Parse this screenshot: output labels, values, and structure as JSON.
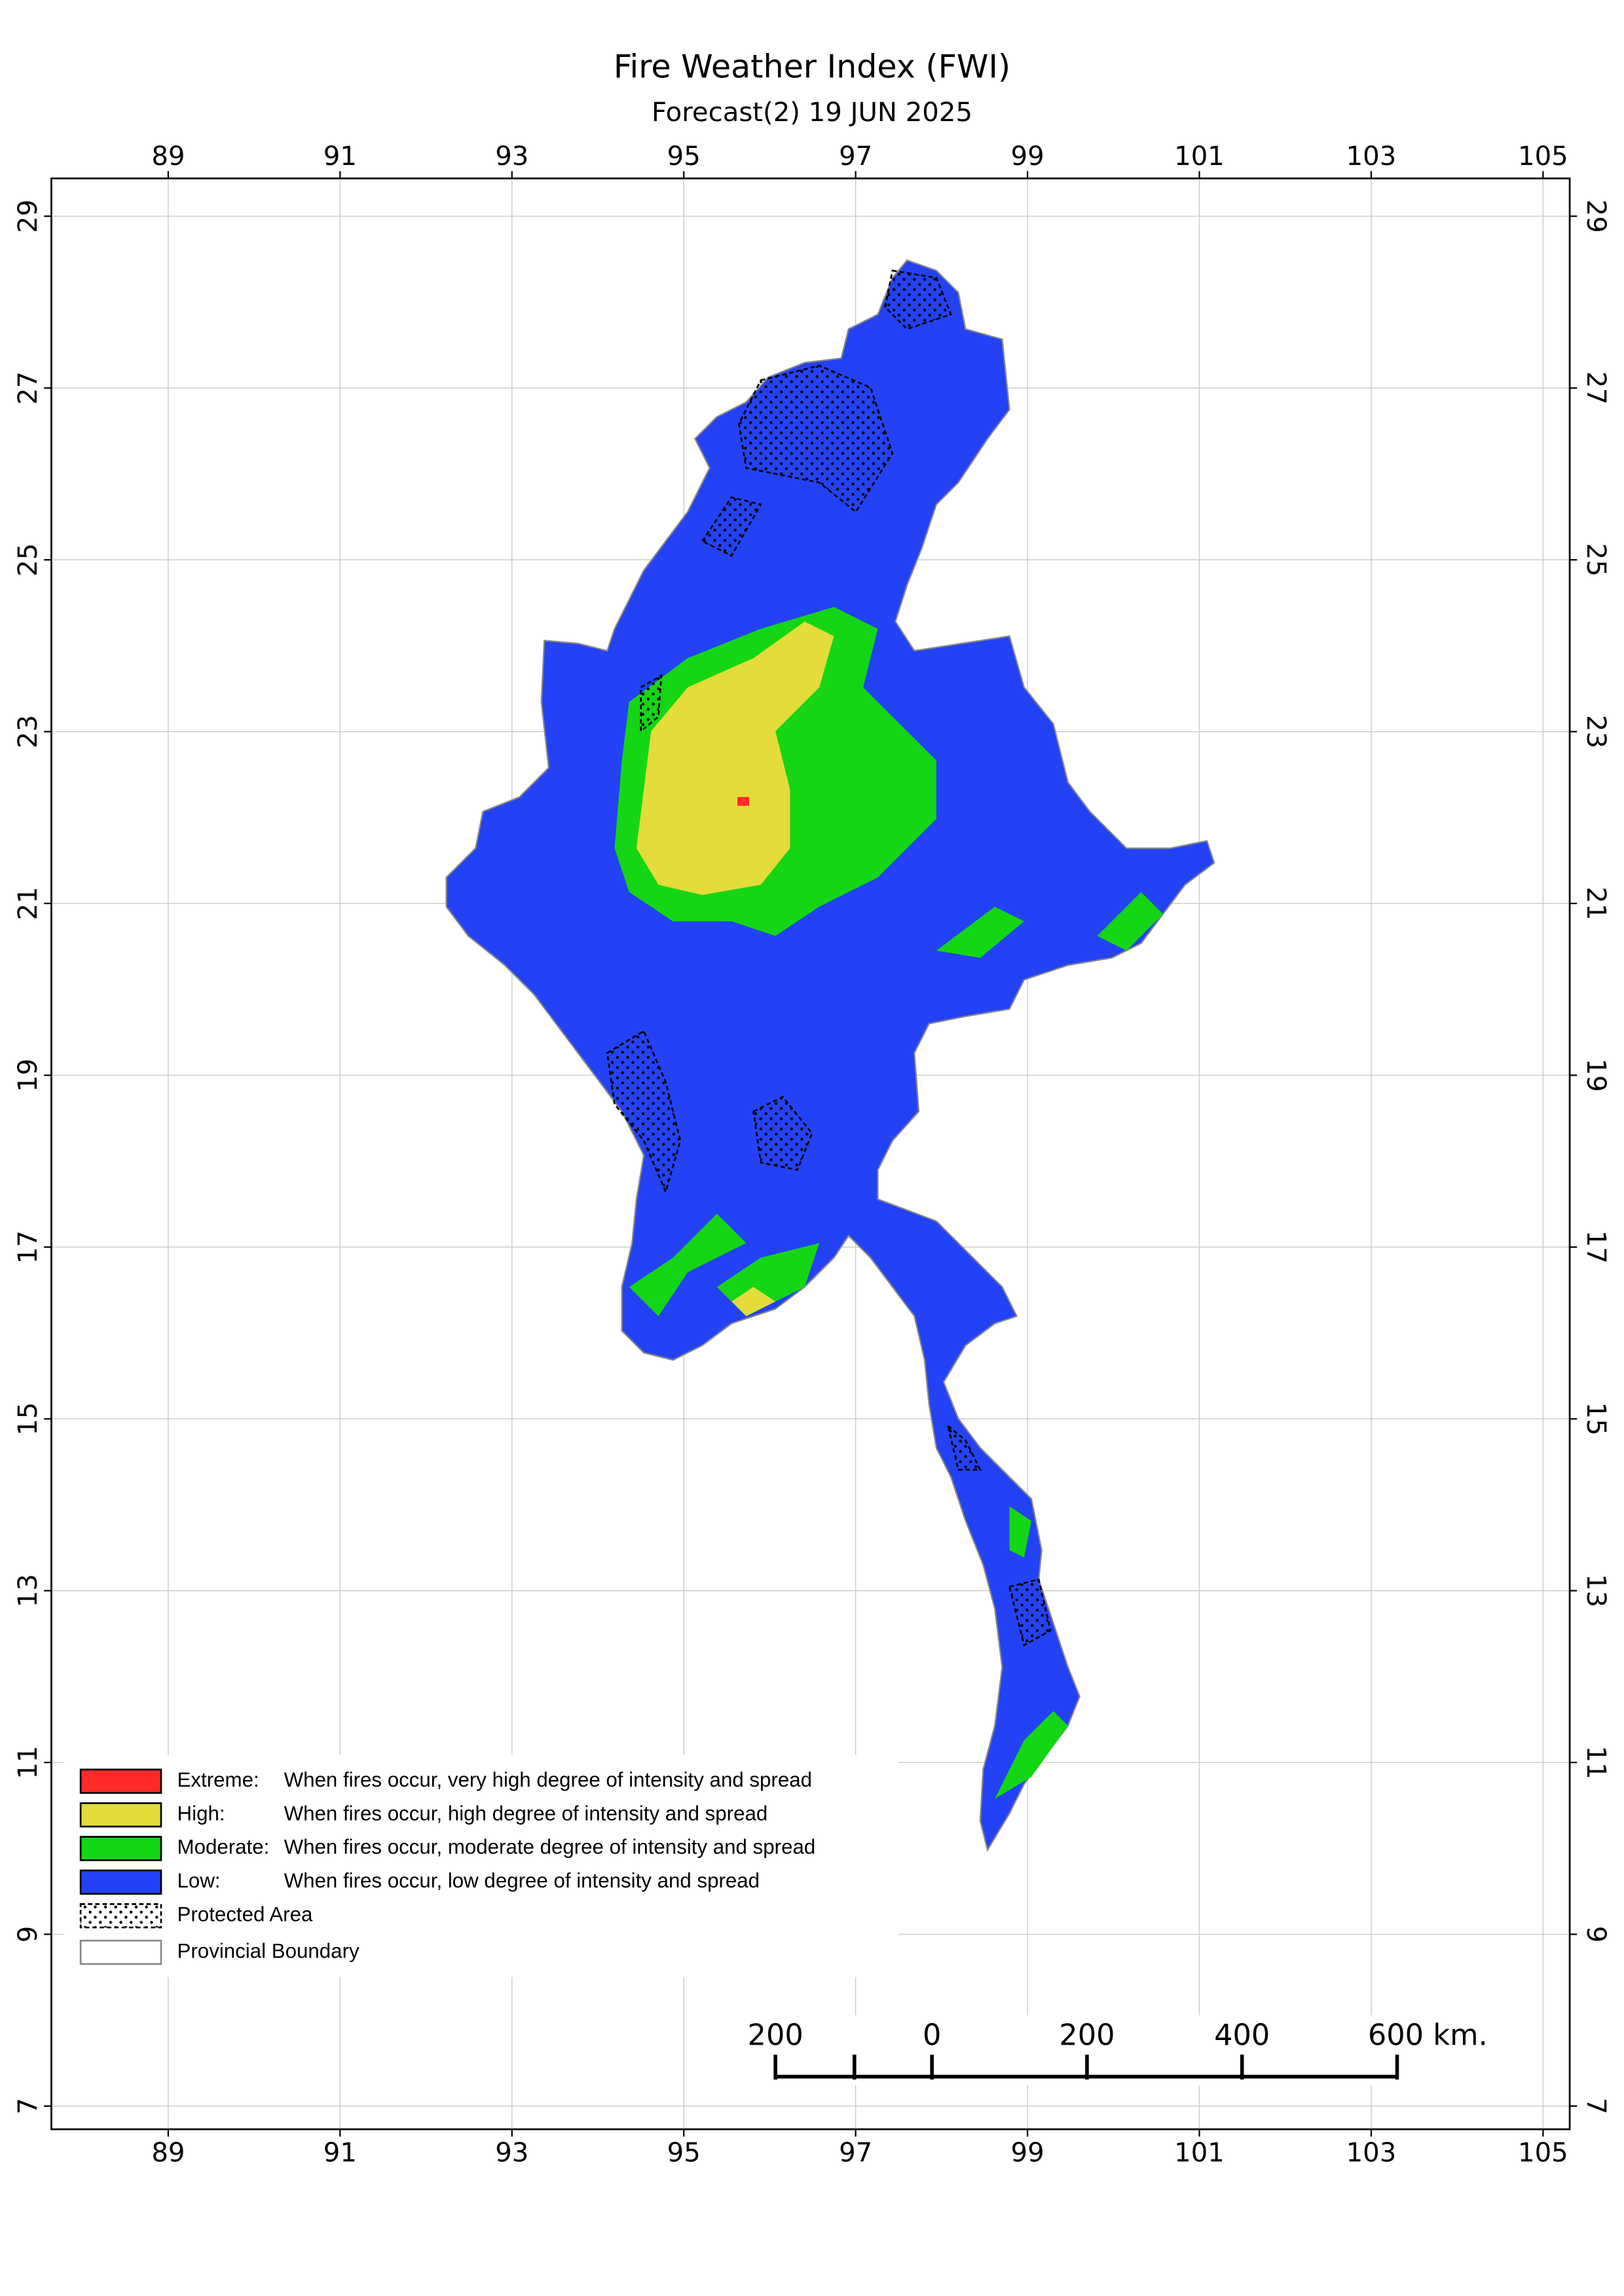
{
  "title": "Fire Weather Index (FWI)",
  "subtitle": "Forecast(2) 19 JUN 2025",
  "map": {
    "xlim": [
      87.64,
      105.31
    ],
    "ylim": [
      6.73,
      29.44
    ],
    "xticks": [
      89,
      91,
      93,
      95,
      97,
      99,
      101,
      103,
      105
    ],
    "yticks": [
      7,
      9,
      11,
      13,
      15,
      17,
      19,
      21,
      23,
      25,
      27,
      29
    ]
  },
  "legend": [
    {
      "label": "Extreme:",
      "description": "When fires occur, very high degree of intensity and spread",
      "color": "#ff2a2a"
    },
    {
      "label": "High:",
      "description": "When fires occur, high degree of intensity and spread",
      "color": "#e3dc3a"
    },
    {
      "label": "Moderate:",
      "description": "When fires occur, moderate degree of intensity and spread",
      "color": "#14d614"
    },
    {
      "label": "Low:",
      "description": "When fires occur, low degree of intensity and spread",
      "color": "#2342f5"
    },
    {
      "label": "Protected Area"
    },
    {
      "label": "Provincial Boundary"
    }
  ],
  "scale_bar": {
    "labels": [
      "200",
      "0",
      "200",
      "400",
      "600 km."
    ]
  }
}
